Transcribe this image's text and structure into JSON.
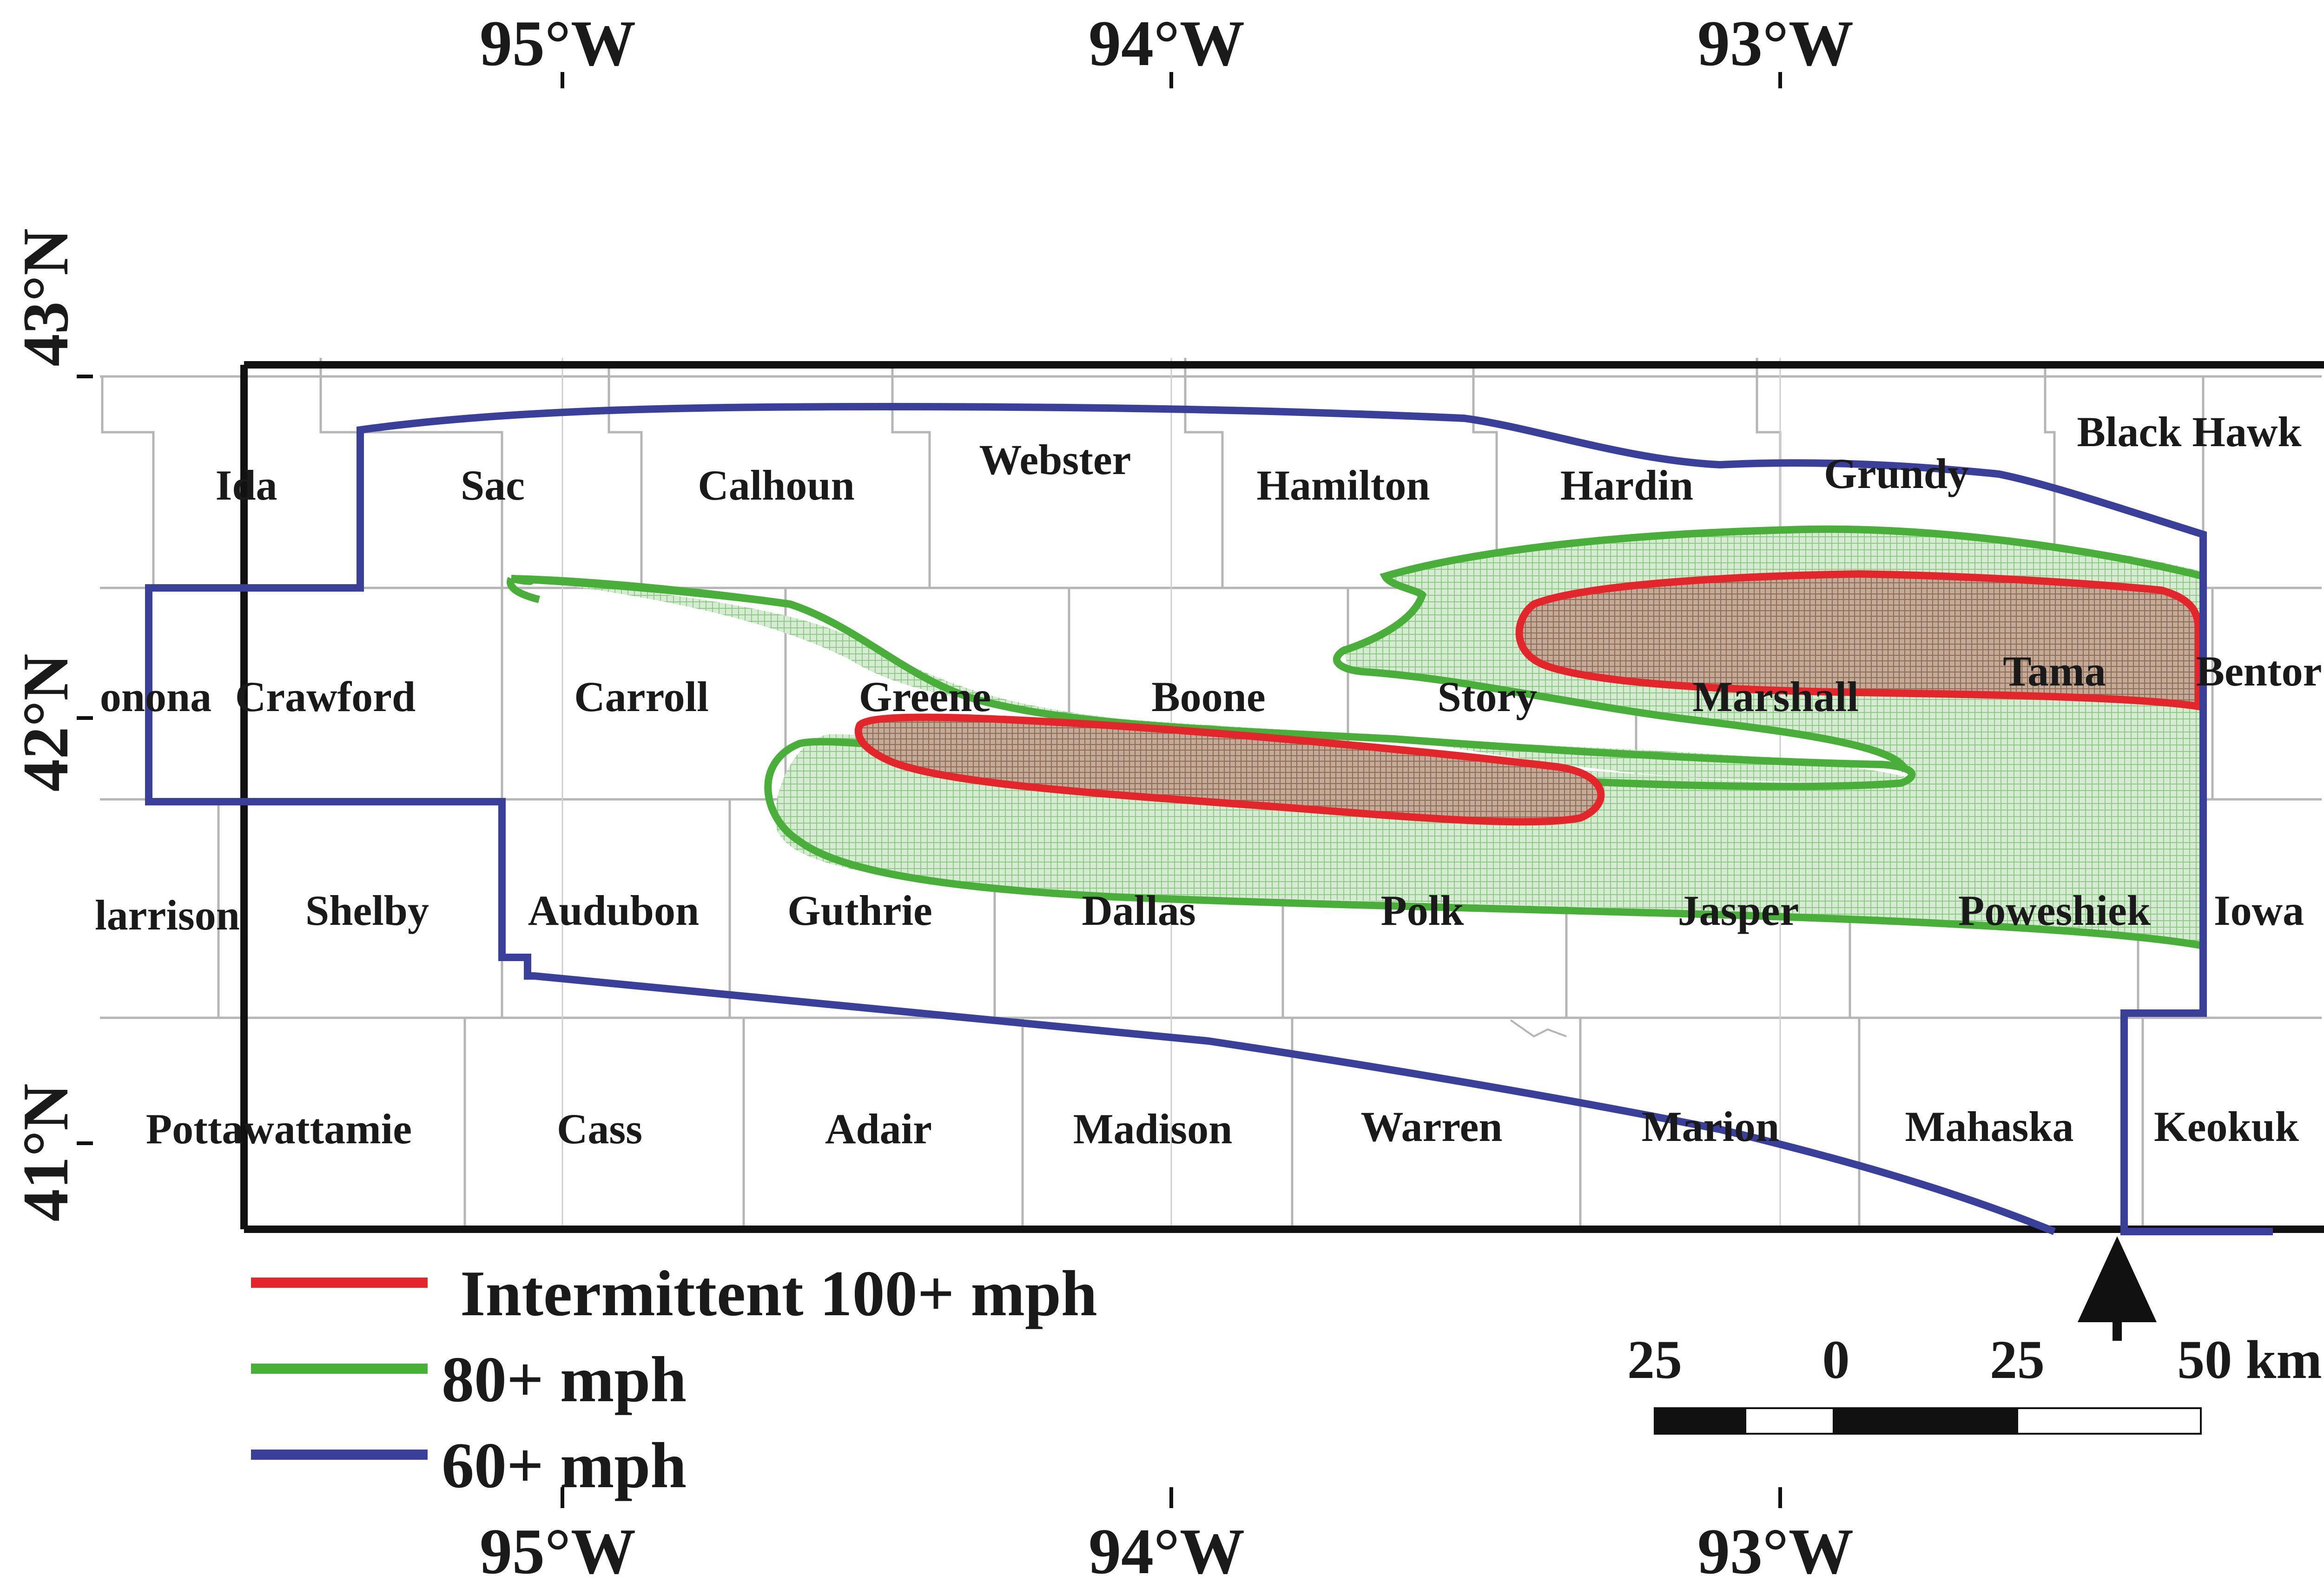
{
  "map": {
    "longitude_labels": [
      "95°W",
      "94°W",
      "93°W"
    ],
    "latitude_labels": [
      "43°N",
      "42°N",
      "41°N"
    ],
    "counties": [
      "Ida",
      "Sac",
      "Calhoun",
      "Webster",
      "Hamilton",
      "Hardin",
      "Grundy",
      "Black Hawk",
      "onona",
      "Crawford",
      "Carroll",
      "Greene",
      "Boone",
      "Story",
      "Marshall",
      "Tama",
      "Bentor",
      "larrison",
      "Shelby",
      "Audubon",
      "Guthrie",
      "Dallas",
      "Polk",
      "Jasper",
      "Poweshiek",
      "Iowa",
      "Pottawattamie",
      "Cass",
      "Adair",
      "Madison",
      "Warren",
      "Marion",
      "Mahaska",
      "Keokuk"
    ],
    "colors": {
      "red_100": "#e3262b",
      "green_80": "#4aaf3a",
      "blue_60": "#3a3f9a",
      "green_fill": "#cfe9cc",
      "red_fill": "#b59a86",
      "frame": "#111111",
      "county_lines": "#b5b5b5"
    }
  },
  "legend": {
    "items": [
      {
        "label": "Intermittent 100+ mph",
        "color": "#e3262b"
      },
      {
        "label": "80+   mph",
        "color": "#4aaf3a"
      },
      {
        "label": "60+   mph",
        "color": "#3a3f9a"
      }
    ]
  },
  "scalebar": {
    "labels": [
      "25",
      "0",
      "25",
      "50 km"
    ]
  },
  "north_arrow": {
    "icon": "north-arrow-icon"
  }
}
